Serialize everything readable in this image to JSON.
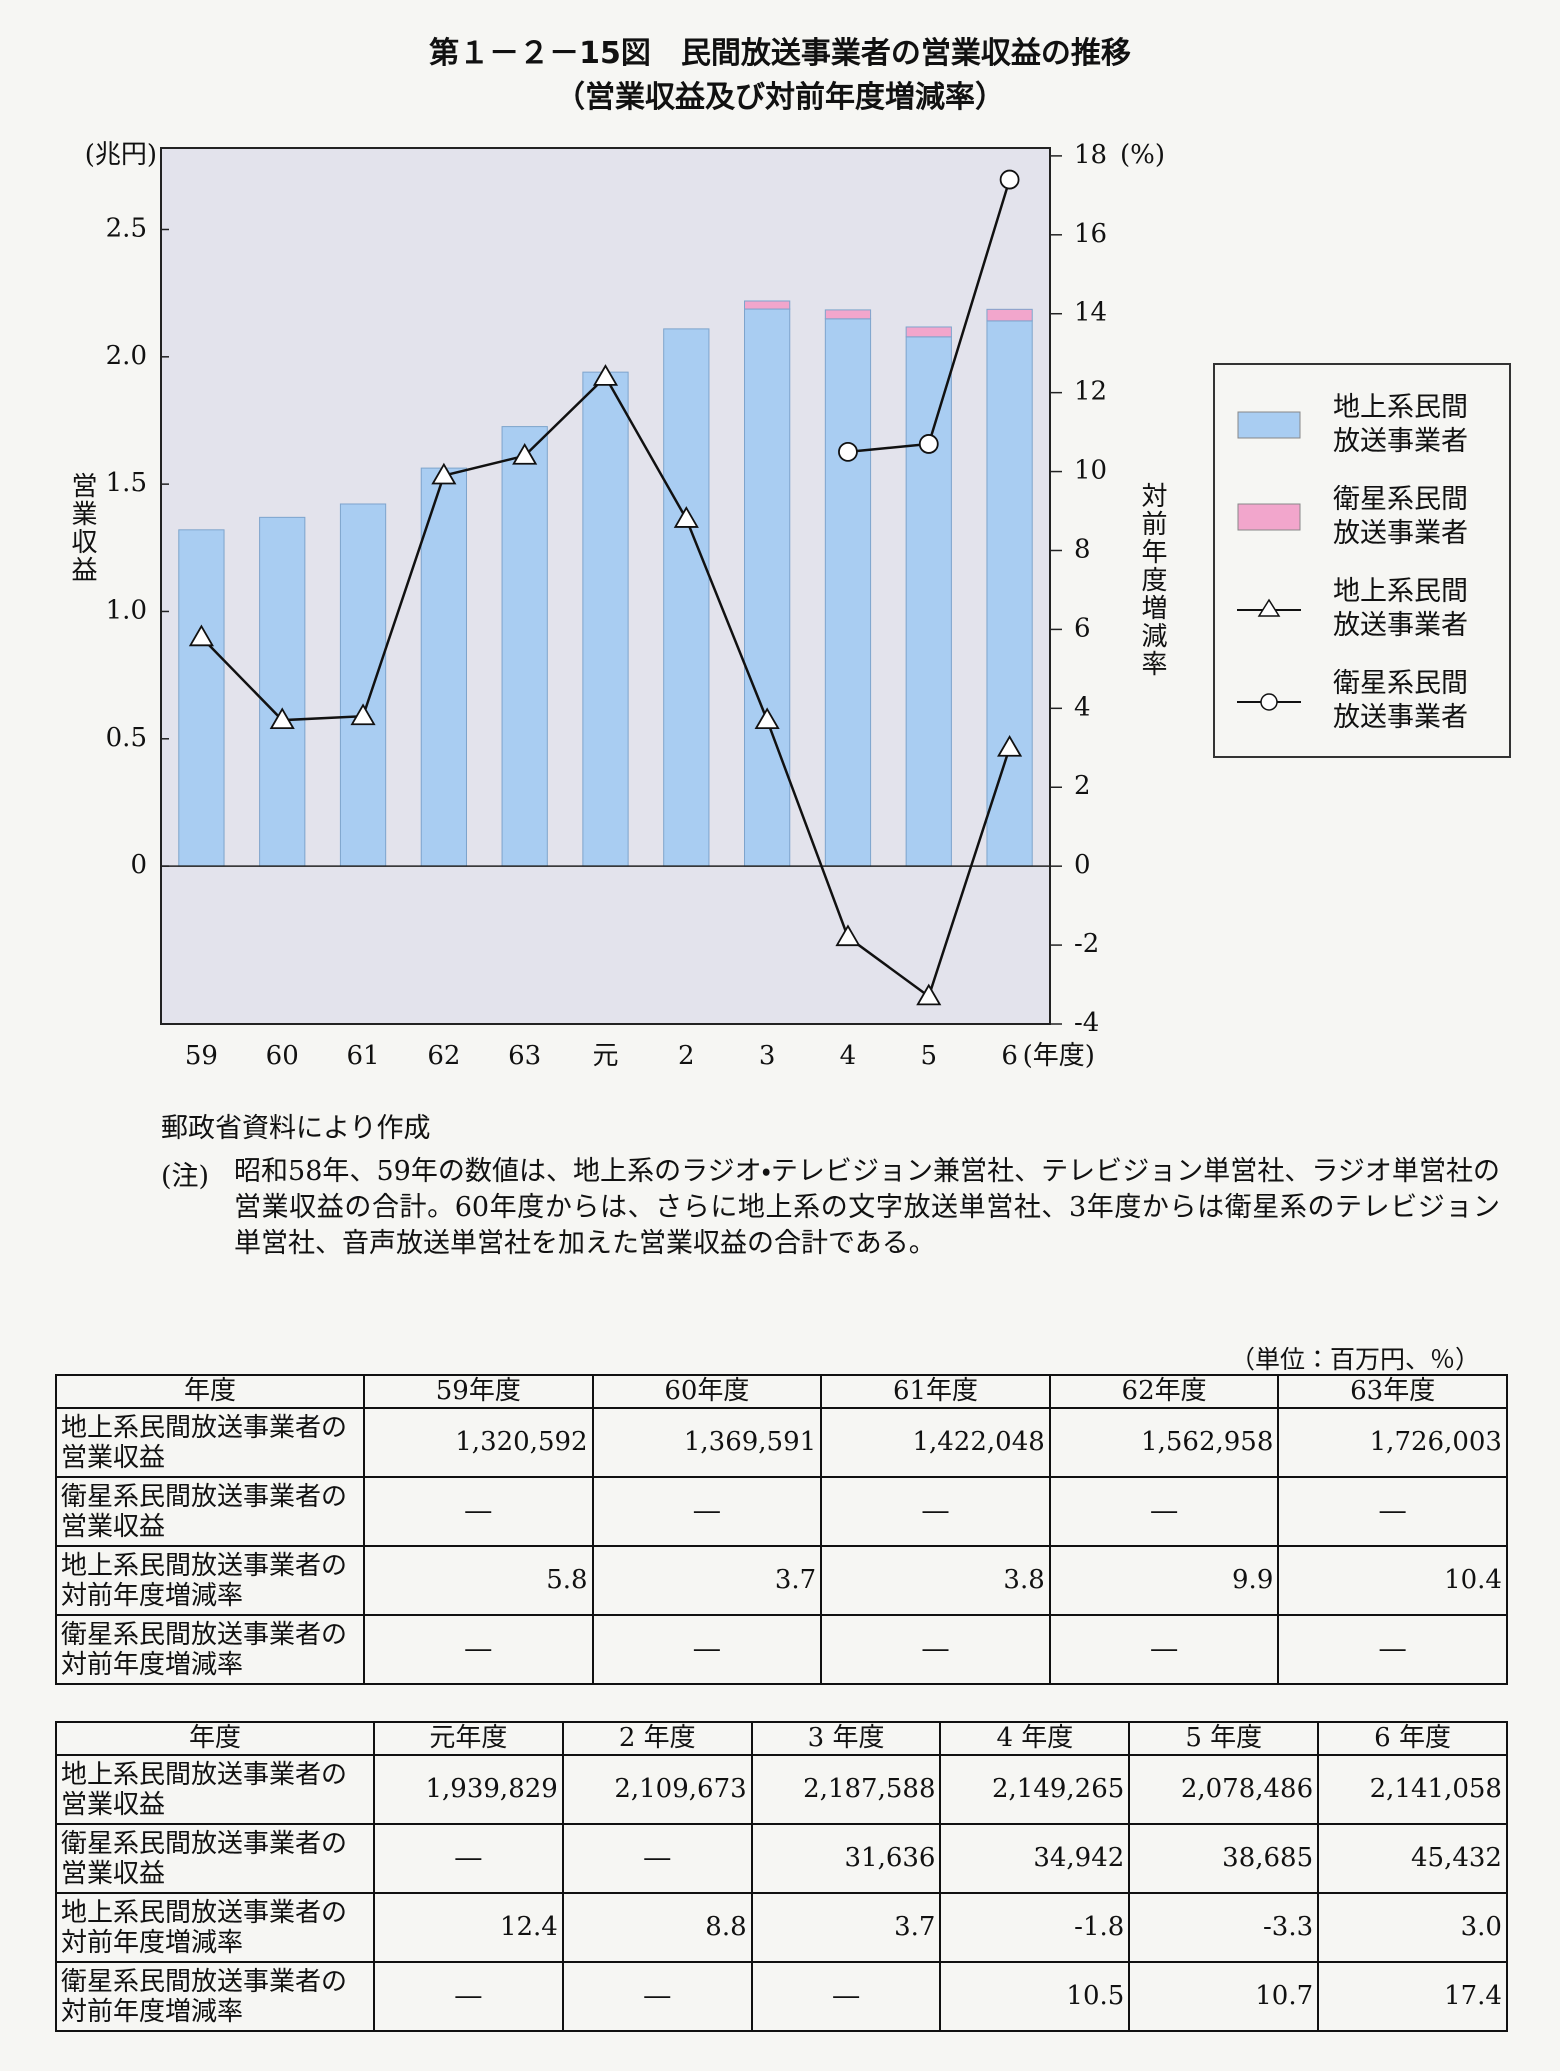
{
  "title": "第１－２－15図　民間放送事業者の営業収益の推移",
  "subtitle": "（営業収益及び対前年度増減率）",
  "chart_data": {
    "type": "bar",
    "categories": [
      "59",
      "60",
      "61",
      "62",
      "63",
      "元",
      "2",
      "3",
      "4",
      "5",
      "6"
    ],
    "x_unit": "(年度)",
    "y_label": "営業収益",
    "y_unit": "(兆円)",
    "y2_label": "対前年度増減率",
    "y2_unit": "(%)",
    "ylim": [
      -0.62,
      2.82
    ],
    "yticks": [
      0,
      0.5,
      {
        "value": 1,
        "label": "1.0"
      },
      1.5,
      {
        "value": 2,
        "label": "2.0"
      },
      2.5
    ],
    "y2lim": [
      -4,
      18.2
    ],
    "y2ticks": [
      -4,
      -2,
      0,
      2,
      4,
      6,
      8,
      10,
      12,
      14,
      16,
      18
    ],
    "plot_background": "#e3e3ec",
    "legend": "right",
    "series": [
      {
        "name": "地上系民間放送事業者",
        "type": "bar",
        "color": "#a9cdf2",
        "values": [
          1.320592,
          1.369591,
          1.422048,
          1.562958,
          1.726003,
          1.939829,
          2.109673,
          2.187588,
          2.149265,
          2.078486,
          2.141058
        ]
      },
      {
        "name": "衛星系民間放送事業者",
        "type": "bar",
        "color": "#f2a6cc",
        "values": [
          null,
          null,
          null,
          null,
          null,
          null,
          null,
          0.031636,
          0.034942,
          0.038685,
          0.045432
        ]
      },
      {
        "name": "地上系民間放送事業者",
        "type": "line",
        "marker": "triangle",
        "color": "#111111",
        "axis": "y2",
        "values": [
          5.8,
          3.7,
          3.8,
          9.9,
          10.4,
          12.4,
          8.8,
          3.7,
          -1.8,
          -3.3,
          3.0
        ]
      },
      {
        "name": "衛星系民間放送事業者",
        "type": "line",
        "marker": "circle",
        "color": "#111111",
        "axis": "y2",
        "values": [
          null,
          null,
          null,
          null,
          null,
          null,
          null,
          null,
          10.5,
          10.7,
          17.4
        ]
      }
    ]
  },
  "source": "郵政省資料により作成",
  "note_label": "(注)",
  "note": "昭和58年、59年の数値は、地上系のラジオ・テレビジョン兼営社、テレビジョン単営社、ラジオ単営社の営業収益の合計。60年度からは、さらに地上系の文字放送単営社、3年度からは衛星系のテレビジョン単営社、音声放送単営社を加えた営業収益の合計である。",
  "unit": "（単位：百万円、％）",
  "tables": [
    {
      "header": [
        "年度",
        "59年度",
        "60年度",
        "61年度",
        "62年度",
        "63年度"
      ],
      "rows": [
        [
          "地上系民間放送事業者の営業収益",
          "1,320,592",
          "1,369,591",
          "1,422,048",
          "1,562,958",
          "1,726,003"
        ],
        [
          "衛星系民間放送事業者の営業収益",
          "―",
          "―",
          "―",
          "―",
          "―"
        ],
        [
          "地上系民間放送事業者の対前年度増減率",
          "5.8",
          "3.7",
          "3.8",
          "9.9",
          "10.4"
        ],
        [
          "衛星系民間放送事業者の対前年度増減率",
          "―",
          "―",
          "―",
          "―",
          "―"
        ]
      ]
    },
    {
      "header": [
        "年度",
        "元年度",
        "2 年度",
        "3 年度",
        "4 年度",
        "5 年度",
        "6 年度"
      ],
      "rows": [
        [
          "地上系民間放送事業者の営業収益",
          "1,939,829",
          "2,109,673",
          "2,187,588",
          "2,149,265",
          "2,078,486",
          "2,141,058"
        ],
        [
          "衛星系民間放送事業者の営業収益",
          "―",
          "―",
          "31,636",
          "34,942",
          "38,685",
          "45,432"
        ],
        [
          "地上系民間放送事業者の対前年度増減率",
          "12.4",
          "8.8",
          "3.7",
          "-1.8",
          "-3.3",
          "3.0"
        ],
        [
          "衛星系民間放送事業者の対前年度増減率",
          "―",
          "―",
          "―",
          "10.5",
          "10.7",
          "17.4"
        ]
      ]
    }
  ]
}
